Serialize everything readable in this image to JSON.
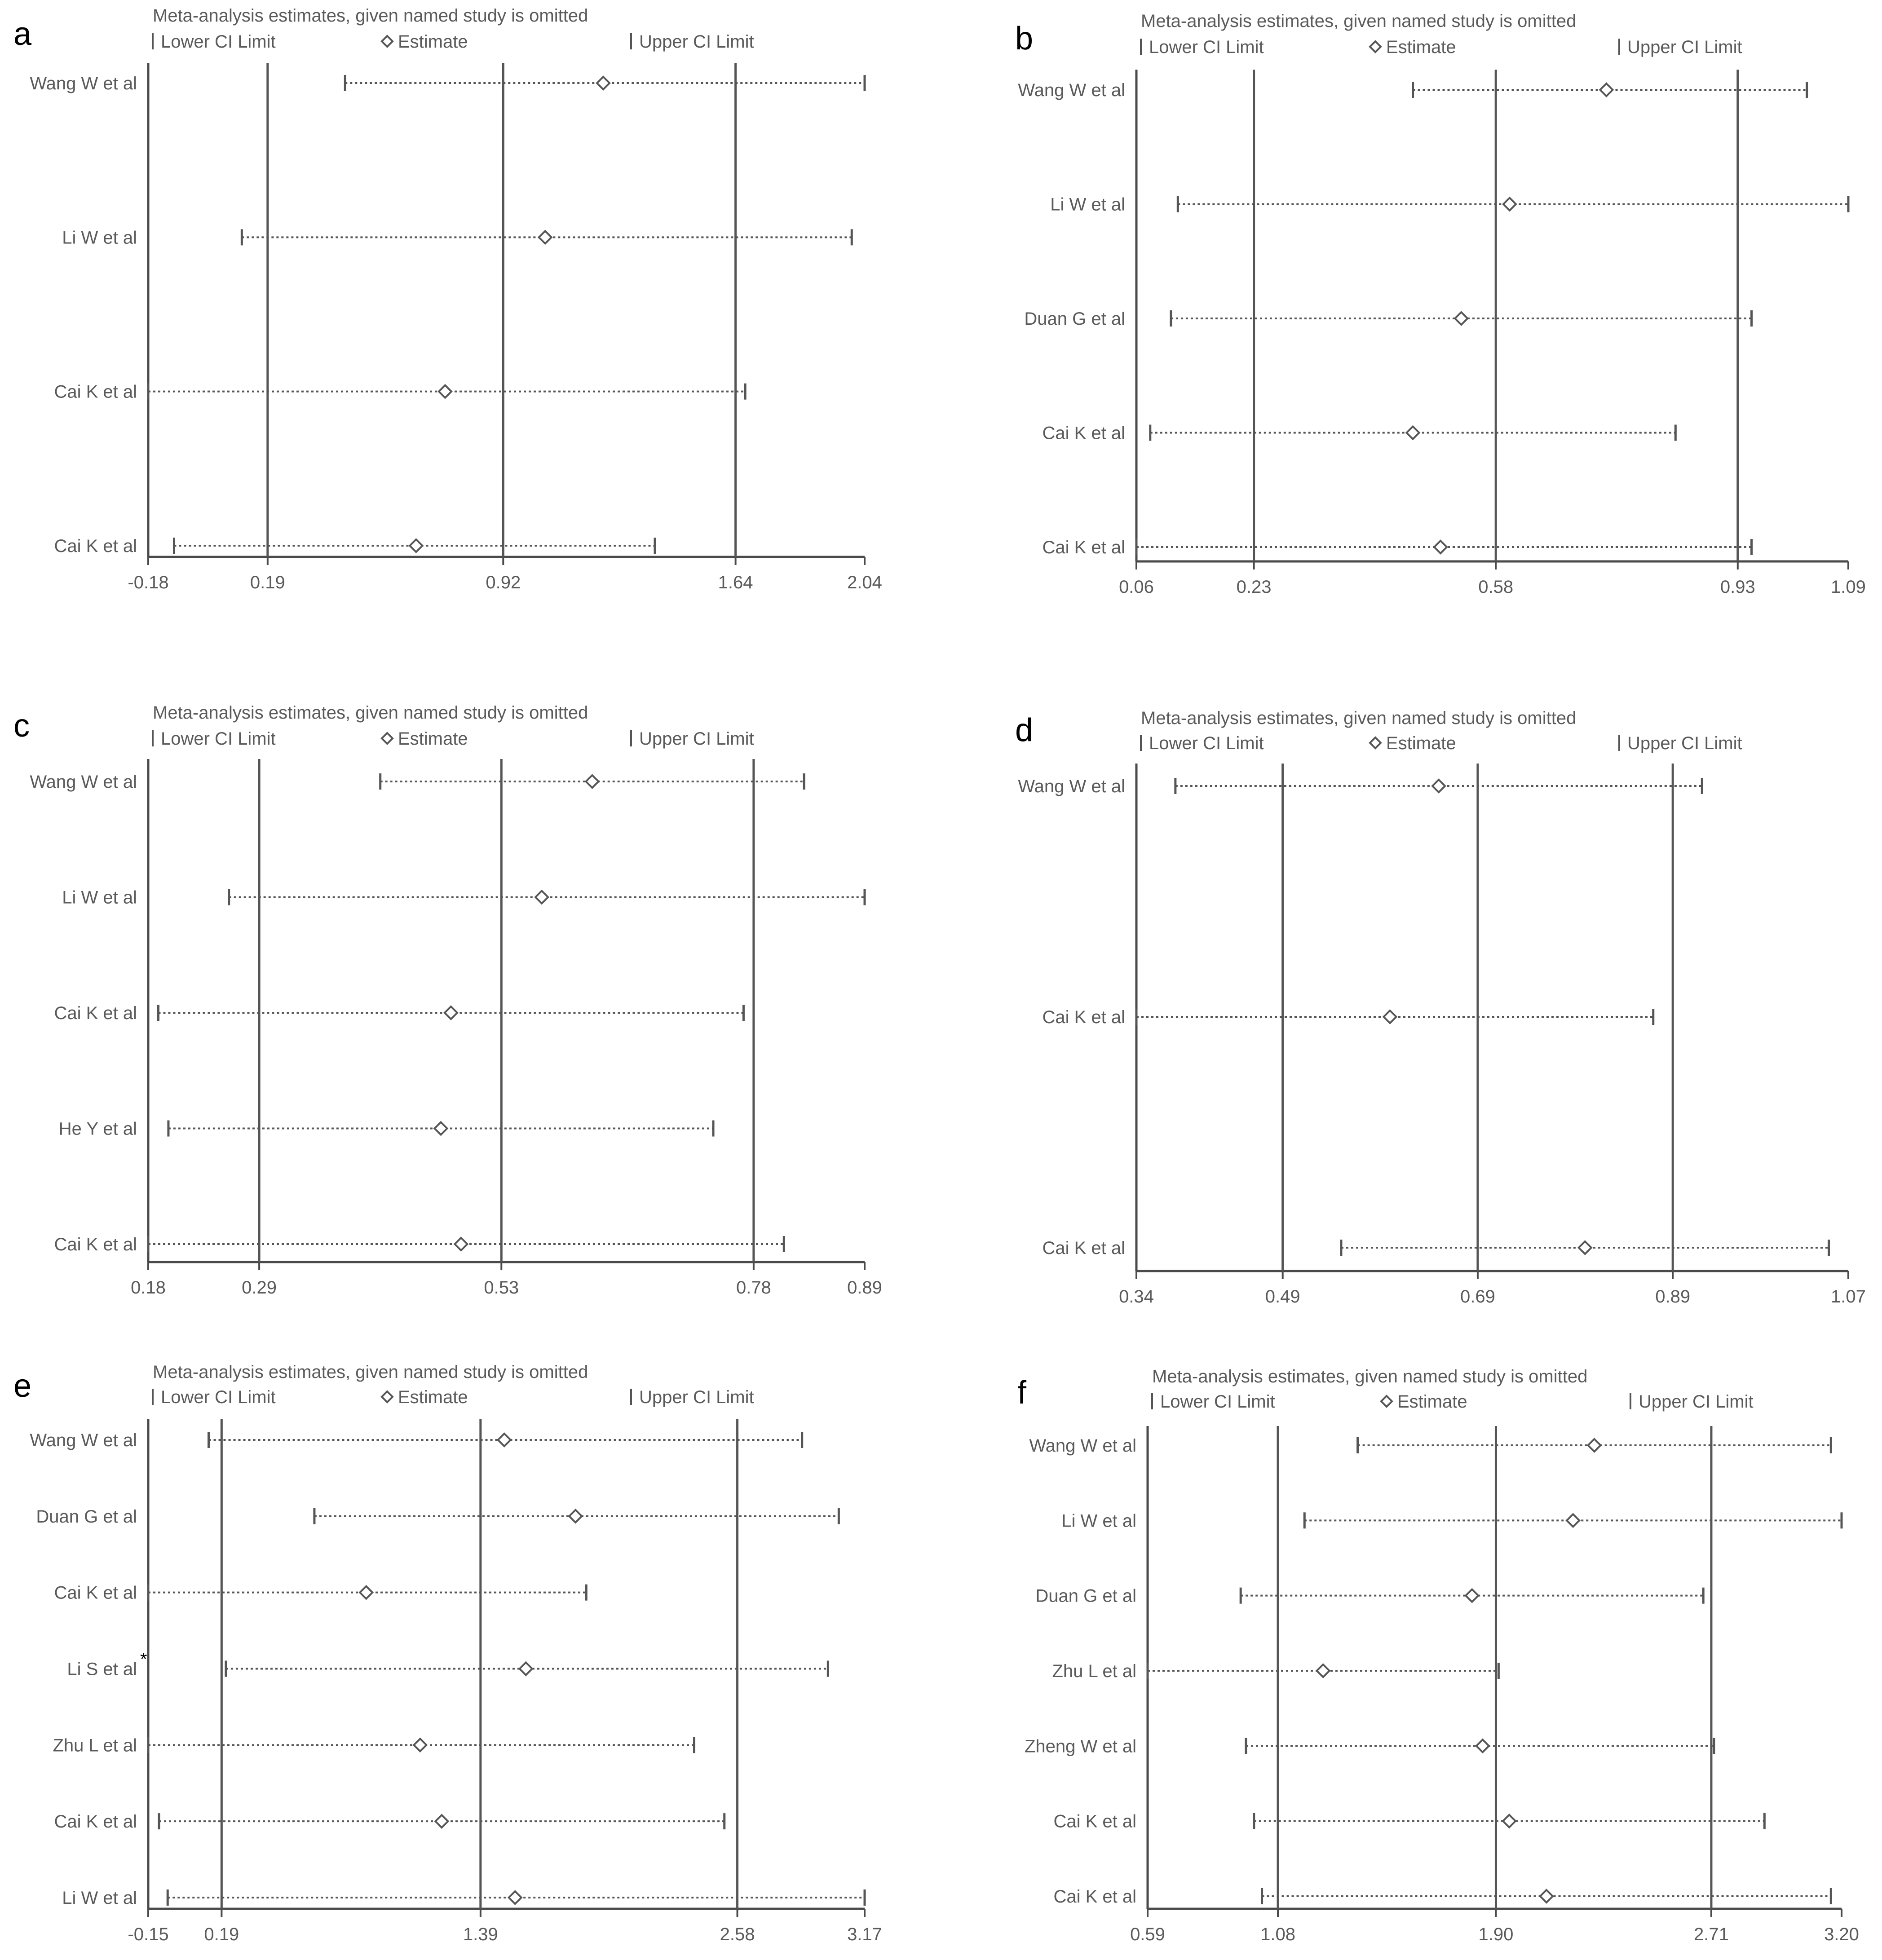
{
  "figure": {
    "title": "Sensitivity analysis (meta-analysis estimates with each named study omitted)"
  },
  "colors": {
    "axis": "#4a4a4a",
    "reference_line": "#555555",
    "ci_line": "#555555",
    "text": "#5a5a5a",
    "panel_letter": "#000000",
    "background": "#ffffff"
  },
  "chart_data": [
    {
      "panel": "a",
      "type": "scatter",
      "title": "Meta-analysis estimates, given named study is omitted",
      "legend": [
        "Lower CI Limit",
        "Estimate",
        "Upper CI Limit"
      ],
      "xlim": [
        -0.18,
        2.04
      ],
      "xticks": [
        "-0.18",
        "0.19",
        "0.92",
        "1.64",
        "2.04"
      ],
      "xtick_values": [
        -0.18,
        0.19,
        0.92,
        1.64,
        2.04
      ],
      "reference_lines": [
        0.19,
        0.92,
        1.64
      ],
      "studies": [
        {
          "name": "Wang W et al",
          "lower": 0.43,
          "estimate": 1.23,
          "upper": 2.04
        },
        {
          "name": "Li W et al",
          "lower": 0.11,
          "estimate": 1.05,
          "upper": 2.0
        },
        {
          "name": "Cai K et al",
          "lower": -0.18,
          "estimate": 0.74,
          "upper": 1.67
        },
        {
          "name": "Cai K et al",
          "lower": -0.1,
          "estimate": 0.65,
          "upper": 1.39
        }
      ]
    },
    {
      "panel": "b",
      "type": "scatter",
      "title": "Meta-analysis estimates, given named study is omitted",
      "legend": [
        "Lower CI Limit",
        "Estimate",
        "Upper CI Limit"
      ],
      "xlim": [
        0.06,
        1.09
      ],
      "xticks": [
        "0.06",
        "0.23",
        "0.58",
        "0.93",
        "1.09"
      ],
      "xtick_values": [
        0.06,
        0.23,
        0.58,
        0.93,
        1.09
      ],
      "reference_lines": [
        0.23,
        0.58,
        0.93
      ],
      "studies": [
        {
          "name": "Wang W et al",
          "lower": 0.46,
          "estimate": 0.74,
          "upper": 1.03
        },
        {
          "name": "Li W et al",
          "lower": 0.12,
          "estimate": 0.6,
          "upper": 1.09
        },
        {
          "name": "Duan G et al",
          "lower": 0.11,
          "estimate": 0.53,
          "upper": 0.95
        },
        {
          "name": "Cai K et al",
          "lower": 0.08,
          "estimate": 0.46,
          "upper": 0.84
        },
        {
          "name": "Cai K et al",
          "lower": 0.06,
          "estimate": 0.5,
          "upper": 0.95
        }
      ]
    },
    {
      "panel": "c",
      "type": "scatter",
      "title": "Meta-analysis estimates, given named study is omitted",
      "legend": [
        "Lower CI Limit",
        "Estimate",
        "Upper CI Limit"
      ],
      "xlim": [
        0.18,
        0.89
      ],
      "xticks": [
        "0.18",
        "0.29",
        "0.53",
        "0.78",
        "0.89"
      ],
      "xtick_values": [
        0.18,
        0.29,
        0.53,
        0.78,
        0.89
      ],
      "reference_lines": [
        0.29,
        0.53,
        0.78
      ],
      "studies": [
        {
          "name": "Wang W et al",
          "lower": 0.41,
          "estimate": 0.62,
          "upper": 0.83
        },
        {
          "name": "Li W et al",
          "lower": 0.26,
          "estimate": 0.57,
          "upper": 0.89
        },
        {
          "name": "Cai K et al",
          "lower": 0.19,
          "estimate": 0.48,
          "upper": 0.77
        },
        {
          "name": "He Y et al",
          "lower": 0.2,
          "estimate": 0.47,
          "upper": 0.74
        },
        {
          "name": "Cai K et al",
          "lower": 0.18,
          "estimate": 0.49,
          "upper": 0.81
        }
      ]
    },
    {
      "panel": "d",
      "type": "scatter",
      "title": "Meta-analysis estimates, given named study is omitted",
      "legend": [
        "Lower CI Limit",
        "Estimate",
        "Upper CI Limit"
      ],
      "xlim": [
        0.34,
        1.07
      ],
      "xticks": [
        "0.34",
        "0.49",
        "0.69",
        "0.89",
        "1.07"
      ],
      "xtick_values": [
        0.34,
        0.49,
        0.69,
        0.89,
        1.07
      ],
      "reference_lines": [
        0.49,
        0.69,
        0.89
      ],
      "studies": [
        {
          "name": "Wang W et al",
          "lower": 0.38,
          "estimate": 0.65,
          "upper": 0.92
        },
        {
          "name": "Cai K et al",
          "lower": 0.34,
          "estimate": 0.6,
          "upper": 0.87
        },
        {
          "name": "Cai K et al",
          "lower": 0.55,
          "estimate": 0.8,
          "upper": 1.05
        }
      ]
    },
    {
      "panel": "e",
      "type": "scatter",
      "title": "Meta-analysis estimates, given named study is omitted",
      "legend": [
        "Lower CI Limit",
        "Estimate",
        "Upper CI Limit"
      ],
      "xlim": [
        -0.15,
        3.17
      ],
      "xticks": [
        "-0.15",
        "0.19",
        "1.39",
        "2.58",
        "3.17"
      ],
      "xtick_values": [
        -0.15,
        0.19,
        1.39,
        2.58,
        3.17
      ],
      "reference_lines": [
        0.19,
        1.39,
        2.58
      ],
      "studies": [
        {
          "name": "Wang W et al",
          "lower": 0.13,
          "estimate": 1.5,
          "upper": 2.88
        },
        {
          "name": "Duan G et al",
          "lower": 0.62,
          "estimate": 1.83,
          "upper": 3.05
        },
        {
          "name": "Cai K et al",
          "lower": -0.15,
          "estimate": 0.86,
          "upper": 1.88
        },
        {
          "name": "Li S et al",
          "lower": 0.21,
          "estimate": 1.6,
          "upper": 3.0,
          "marker": "*"
        },
        {
          "name": "Zhu L et al",
          "lower": -0.15,
          "estimate": 1.11,
          "upper": 2.38
        },
        {
          "name": "Cai K et al",
          "lower": -0.1,
          "estimate": 1.21,
          "upper": 2.52
        },
        {
          "name": "Li W et al",
          "lower": -0.06,
          "estimate": 1.55,
          "upper": 3.17
        }
      ]
    },
    {
      "panel": "f",
      "type": "scatter",
      "title": "Meta-analysis estimates, given named study is omitted",
      "legend": [
        "Lower CI Limit",
        "Estimate",
        "Upper CI Limit"
      ],
      "xlim": [
        0.59,
        3.2
      ],
      "xticks": [
        "0.59",
        "1.08",
        "1.90",
        "2.71",
        "3.20"
      ],
      "xtick_values": [
        0.59,
        1.08,
        1.9,
        2.71,
        3.2
      ],
      "reference_lines": [
        1.08,
        1.9,
        2.71
      ],
      "studies": [
        {
          "name": "Wang W et al",
          "lower": 1.38,
          "estimate": 2.27,
          "upper": 3.16
        },
        {
          "name": "Li W et al",
          "lower": 1.18,
          "estimate": 2.19,
          "upper": 3.2
        },
        {
          "name": "Duan G et al",
          "lower": 0.94,
          "estimate": 1.81,
          "upper": 2.68
        },
        {
          "name": "Zhu L et al",
          "lower": 0.59,
          "estimate": 1.25,
          "upper": 1.91
        },
        {
          "name": "Zheng W et al",
          "lower": 0.96,
          "estimate": 1.85,
          "upper": 2.72
        },
        {
          "name": "Cai K et al",
          "lower": 0.99,
          "estimate": 1.95,
          "upper": 2.91
        },
        {
          "name": "Cai K et al",
          "lower": 1.02,
          "estimate": 2.09,
          "upper": 3.16
        }
      ]
    }
  ]
}
